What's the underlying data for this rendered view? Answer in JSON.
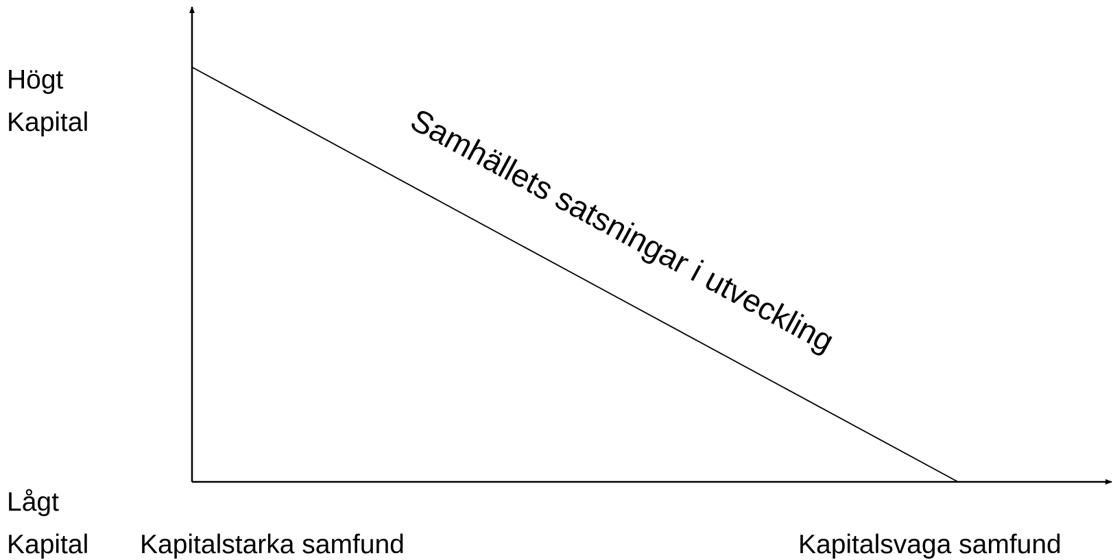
{
  "y_axis": {
    "top_label": [
      "Högt",
      "Kapital"
    ],
    "bottom_label": [
      "Lågt",
      "Kapital"
    ]
  },
  "x_axis": {
    "left_label": "Kapitalstarka samfund",
    "right_label": "Kapitalsvaga samfund"
  },
  "line_label": "Samhällets satsningar i utveckling"
}
